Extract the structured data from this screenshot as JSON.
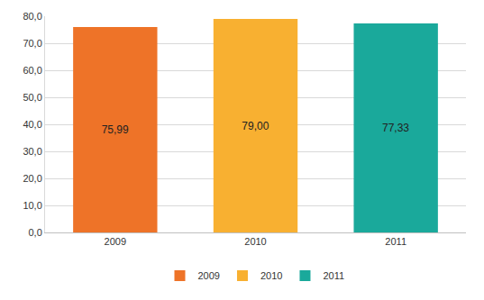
{
  "chart_data": {
    "type": "bar",
    "categories": [
      "2009",
      "2010",
      "2011"
    ],
    "values": [
      75.99,
      79.0,
      77.33
    ],
    "value_labels": [
      "75,99",
      "79,00",
      "77,33"
    ],
    "colors": [
      "#ee7328",
      "#f8b031",
      "#1aa99b"
    ],
    "ylim": [
      0,
      80
    ],
    "yticks": [
      {
        "value": 0,
        "label": "0,0"
      },
      {
        "value": 10,
        "label": "10,0"
      },
      {
        "value": 20,
        "label": "20,0"
      },
      {
        "value": 30,
        "label": "30,0"
      },
      {
        "value": 40,
        "label": "40,0"
      },
      {
        "value": 50,
        "label": "50,0"
      },
      {
        "value": 60,
        "label": "60,0"
      },
      {
        "value": 70,
        "label": "70,0"
      },
      {
        "value": 80,
        "label": "80,0"
      }
    ],
    "grid": true,
    "data_labels": true,
    "legend": "bottom"
  }
}
